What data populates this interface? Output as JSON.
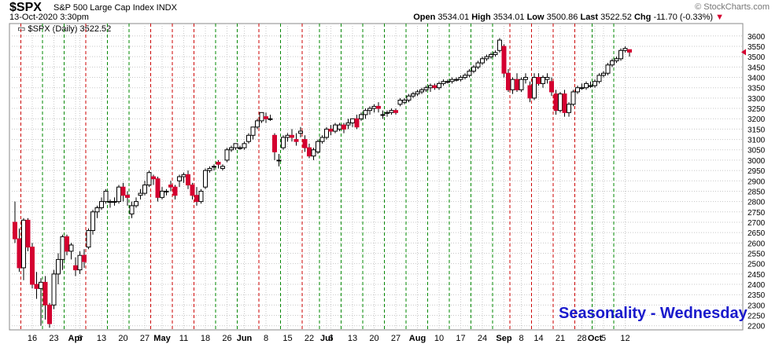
{
  "header": {
    "symbol": "$SPX",
    "description": "S&P 500 Large Cap Index  INDX",
    "datetime": "13-Oct-2020 3:30pm",
    "open_label": "Open",
    "open": "3534.01",
    "high_label": "High",
    "high": "3534.01",
    "low_label": "Low",
    "low": "3500.86",
    "last_label": "Last",
    "last": "3522.52",
    "chg_label": "Chg",
    "chg": "-11.70 (-0.33%)",
    "brand": "© StockCharts.com"
  },
  "legend": {
    "text": "$SPX (Daily) 3522.52"
  },
  "overlay_text": "Seasonality - Wednesday",
  "colors": {
    "up": "#ffffff",
    "down": "#d40030",
    "grid": "#c8c8c8",
    "red_line": "#cc0000",
    "green_line": "#008800"
  },
  "chart_data": {
    "type": "candlestick",
    "title": "$SPX (Daily) 3522.52",
    "ylim": [
      2200,
      3650
    ],
    "y_ticks": [
      2200,
      2250,
      2300,
      2350,
      2400,
      2450,
      2500,
      2550,
      2600,
      2650,
      2700,
      2750,
      2800,
      2850,
      2900,
      2950,
      3000,
      3050,
      3100,
      3150,
      3200,
      3250,
      3300,
      3350,
      3400,
      3450,
      3500,
      3550,
      3600
    ],
    "x_labels": [
      {
        "text": "16",
        "bold": false,
        "i": 4
      },
      {
        "text": "23",
        "bold": false,
        "i": 9
      },
      {
        "text": "Apr",
        "bold": true,
        "i": 14
      },
      {
        "text": "6",
        "bold": false,
        "i": 15
      },
      {
        "text": "13",
        "bold": false,
        "i": 20
      },
      {
        "text": "20",
        "bold": false,
        "i": 25
      },
      {
        "text": "27",
        "bold": false,
        "i": 30
      },
      {
        "text": "May",
        "bold": true,
        "i": 34
      },
      {
        "text": "11",
        "bold": false,
        "i": 39
      },
      {
        "text": "18",
        "bold": false,
        "i": 44
      },
      {
        "text": "26",
        "bold": false,
        "i": 49
      },
      {
        "text": "Jun",
        "bold": true,
        "i": 53
      },
      {
        "text": "8",
        "bold": false,
        "i": 58
      },
      {
        "text": "15",
        "bold": false,
        "i": 63
      },
      {
        "text": "22",
        "bold": false,
        "i": 68
      },
      {
        "text": "Jul",
        "bold": true,
        "i": 72
      },
      {
        "text": "6",
        "bold": false,
        "i": 73
      },
      {
        "text": "13",
        "bold": false,
        "i": 78
      },
      {
        "text": "20",
        "bold": false,
        "i": 83
      },
      {
        "text": "27",
        "bold": false,
        "i": 88
      },
      {
        "text": "Aug",
        "bold": true,
        "i": 93
      },
      {
        "text": "10",
        "bold": false,
        "i": 98
      },
      {
        "text": "17",
        "bold": false,
        "i": 103
      },
      {
        "text": "24",
        "bold": false,
        "i": 108
      },
      {
        "text": "Sep",
        "bold": true,
        "i": 113
      },
      {
        "text": "8",
        "bold": false,
        "i": 117
      },
      {
        "text": "14",
        "bold": false,
        "i": 121
      },
      {
        "text": "21",
        "bold": false,
        "i": 126
      },
      {
        "text": "28",
        "bold": false,
        "i": 131
      },
      {
        "text": "Oct",
        "bold": true,
        "i": 134
      },
      {
        "text": "5",
        "bold": false,
        "i": 136
      },
      {
        "text": "12",
        "bold": false,
        "i": 141
      }
    ],
    "wednesday_lines": [
      {
        "i": 1,
        "color": "red"
      },
      {
        "i": 6,
        "color": "green"
      },
      {
        "i": 11,
        "color": "green"
      },
      {
        "i": 16,
        "color": "red"
      },
      {
        "i": 21,
        "color": "green"
      },
      {
        "i": 26,
        "color": "green"
      },
      {
        "i": 31,
        "color": "red"
      },
      {
        "i": 36,
        "color": "red"
      },
      {
        "i": 41,
        "color": "red"
      },
      {
        "i": 46,
        "color": "green"
      },
      {
        "i": 51,
        "color": "green"
      },
      {
        "i": 56,
        "color": "red"
      },
      {
        "i": 61,
        "color": "green"
      },
      {
        "i": 66,
        "color": "red"
      },
      {
        "i": 70,
        "color": "green"
      },
      {
        "i": 75,
        "color": "green"
      },
      {
        "i": 80,
        "color": "green"
      },
      {
        "i": 85,
        "color": "green"
      },
      {
        "i": 90,
        "color": "green"
      },
      {
        "i": 95,
        "color": "green"
      },
      {
        "i": 100,
        "color": "green"
      },
      {
        "i": 105,
        "color": "green"
      },
      {
        "i": 110,
        "color": "green"
      },
      {
        "i": 114,
        "color": "red"
      },
      {
        "i": 119,
        "color": "red"
      },
      {
        "i": 124,
        "color": "red"
      },
      {
        "i": 129,
        "color": "red"
      },
      {
        "i": 133,
        "color": "green"
      },
      {
        "i": 138,
        "color": "green"
      }
    ],
    "candles": [
      [
        2700,
        2800,
        2600,
        2620
      ],
      [
        2620,
        2670,
        2460,
        2480
      ],
      [
        2480,
        2720,
        2420,
        2710
      ],
      [
        2710,
        2720,
        2560,
        2580
      ],
      [
        2580,
        2600,
        2380,
        2400
      ],
      [
        2400,
        2460,
        2330,
        2380
      ],
      [
        2380,
        2430,
        2200,
        2410
      ],
      [
        2410,
        2440,
        2230,
        2300
      ],
      [
        2300,
        2310,
        2190,
        2210
      ],
      [
        2300,
        2470,
        2280,
        2450
      ],
      [
        2450,
        2550,
        2400,
        2520
      ],
      [
        2520,
        2640,
        2470,
        2630
      ],
      [
        2630,
        2640,
        2540,
        2560
      ],
      [
        2560,
        2600,
        2520,
        2590
      ],
      [
        2490,
        2530,
        2440,
        2470
      ],
      [
        2470,
        2560,
        2450,
        2540
      ],
      [
        2540,
        2570,
        2480,
        2510
      ],
      [
        2580,
        2670,
        2570,
        2660
      ],
      [
        2660,
        2760,
        2640,
        2750
      ],
      [
        2750,
        2780,
        2720,
        2770
      ],
      [
        2770,
        2820,
        2760,
        2800
      ],
      [
        2800,
        2860,
        2790,
        2850
      ],
      [
        2800,
        2810,
        2770,
        2800
      ],
      [
        2800,
        2820,
        2780,
        2800
      ],
      [
        2800,
        2880,
        2790,
        2870
      ],
      [
        2870,
        2890,
        2800,
        2830
      ],
      [
        2830,
        2850,
        2780,
        2820
      ],
      [
        2740,
        2800,
        2720,
        2780
      ],
      [
        2780,
        2820,
        2770,
        2800
      ],
      [
        2830,
        2860,
        2810,
        2840
      ],
      [
        2840,
        2900,
        2830,
        2880
      ],
      [
        2880,
        2950,
        2870,
        2940
      ],
      [
        2920,
        2930,
        2880,
        2910
      ],
      [
        2910,
        2920,
        2800,
        2820
      ],
      [
        2820,
        2870,
        2810,
        2850
      ],
      [
        2850,
        2860,
        2830,
        2850
      ],
      [
        2880,
        2900,
        2850,
        2870
      ],
      [
        2870,
        2880,
        2810,
        2830
      ],
      [
        2900,
        2930,
        2870,
        2920
      ],
      [
        2920,
        2940,
        2890,
        2930
      ],
      [
        2930,
        2950,
        2860,
        2880
      ],
      [
        2880,
        2890,
        2810,
        2830
      ],
      [
        2830,
        2870,
        2780,
        2800
      ],
      [
        2800,
        2860,
        2790,
        2850
      ],
      [
        2870,
        2960,
        2860,
        2950
      ],
      [
        2950,
        2970,
        2940,
        2960
      ],
      [
        2970,
        2980,
        2950,
        2970
      ],
      [
        2990,
        3000,
        2960,
        2980
      ],
      [
        2960,
        2980,
        2950,
        2970
      ],
      [
        3000,
        3060,
        2990,
        3050
      ],
      [
        3050,
        3070,
        3040,
        3060
      ],
      [
        3060,
        3080,
        3050,
        3080
      ],
      [
        3060,
        3070,
        3050,
        3060
      ],
      [
        3060,
        3090,
        3050,
        3080
      ],
      [
        3090,
        3130,
        3080,
        3120
      ],
      [
        3120,
        3160,
        3100,
        3160
      ],
      [
        3160,
        3200,
        3150,
        3190
      ],
      [
        3190,
        3230,
        3180,
        3230
      ],
      [
        3210,
        3230,
        3180,
        3200
      ],
      [
        3200,
        3220,
        3190,
        3200
      ],
      [
        3120,
        3130,
        3000,
        3040
      ],
      [
        3000,
        3030,
        2970,
        3000
      ],
      [
        3060,
        3120,
        3050,
        3110
      ],
      [
        3110,
        3130,
        3090,
        3120
      ],
      [
        3120,
        3150,
        3090,
        3110
      ],
      [
        3100,
        3130,
        3070,
        3090
      ],
      [
        3130,
        3160,
        3110,
        3140
      ],
      [
        3100,
        3120,
        3040,
        3060
      ],
      [
        3060,
        3080,
        3010,
        3020
      ],
      [
        3020,
        3060,
        3000,
        3050
      ],
      [
        3040,
        3100,
        3030,
        3090
      ],
      [
        3090,
        3120,
        3080,
        3110
      ],
      [
        3110,
        3160,
        3100,
        3150
      ],
      [
        3150,
        3170,
        3120,
        3140
      ],
      [
        3140,
        3180,
        3130,
        3170
      ],
      [
        3150,
        3180,
        3140,
        3170
      ],
      [
        3170,
        3180,
        3130,
        3150
      ],
      [
        3170,
        3200,
        3150,
        3180
      ],
      [
        3180,
        3200,
        3160,
        3200
      ],
      [
        3200,
        3220,
        3150,
        3160
      ],
      [
        3200,
        3230,
        3190,
        3220
      ],
      [
        3220,
        3250,
        3200,
        3240
      ],
      [
        3240,
        3260,
        3220,
        3250
      ],
      [
        3250,
        3270,
        3230,
        3260
      ],
      [
        3260,
        3280,
        3230,
        3250
      ],
      [
        3220,
        3240,
        3200,
        3220
      ],
      [
        3230,
        3240,
        3210,
        3230
      ],
      [
        3230,
        3250,
        3220,
        3240
      ],
      [
        3240,
        3250,
        3220,
        3230
      ],
      [
        3270,
        3300,
        3260,
        3290
      ],
      [
        3280,
        3300,
        3270,
        3290
      ],
      [
        3290,
        3320,
        3280,
        3310
      ],
      [
        3310,
        3330,
        3300,
        3320
      ],
      [
        3320,
        3340,
        3310,
        3330
      ],
      [
        3330,
        3350,
        3320,
        3340
      ],
      [
        3340,
        3360,
        3330,
        3350
      ],
      [
        3350,
        3370,
        3330,
        3360
      ],
      [
        3360,
        3370,
        3340,
        3350
      ],
      [
        3350,
        3380,
        3340,
        3370
      ],
      [
        3370,
        3390,
        3360,
        3380
      ],
      [
        3380,
        3390,
        3370,
        3380
      ],
      [
        3380,
        3400,
        3370,
        3390
      ],
      [
        3390,
        3400,
        3380,
        3390
      ],
      [
        3390,
        3410,
        3380,
        3400
      ],
      [
        3400,
        3420,
        3390,
        3410
      ],
      [
        3410,
        3440,
        3400,
        3430
      ],
      [
        3430,
        3460,
        3420,
        3450
      ],
      [
        3450,
        3480,
        3440,
        3470
      ],
      [
        3470,
        3500,
        3460,
        3490
      ],
      [
        3490,
        3510,
        3480,
        3500
      ],
      [
        3500,
        3520,
        3490,
        3510
      ],
      [
        3510,
        3530,
        3500,
        3520
      ],
      [
        3530,
        3590,
        3520,
        3580
      ],
      [
        3550,
        3560,
        3400,
        3420
      ],
      [
        3420,
        3440,
        3330,
        3340
      ],
      [
        3340,
        3400,
        3320,
        3390
      ],
      [
        3390,
        3420,
        3330,
        3340
      ],
      [
        3340,
        3400,
        3330,
        3390
      ],
      [
        3390,
        3420,
        3370,
        3400
      ],
      [
        3360,
        3380,
        3280,
        3300
      ],
      [
        3300,
        3420,
        3290,
        3400
      ],
      [
        3400,
        3420,
        3360,
        3370
      ],
      [
        3370,
        3410,
        3350,
        3400
      ],
      [
        3390,
        3420,
        3370,
        3400
      ],
      [
        3380,
        3400,
        3310,
        3330
      ],
      [
        3320,
        3340,
        3220,
        3240
      ],
      [
        3240,
        3330,
        3230,
        3320
      ],
      [
        3320,
        3340,
        3210,
        3230
      ],
      [
        3230,
        3280,
        3210,
        3270
      ],
      [
        3270,
        3340,
        3260,
        3330
      ],
      [
        3330,
        3360,
        3320,
        3350
      ],
      [
        3350,
        3370,
        3340,
        3350
      ],
      [
        3350,
        3380,
        3340,
        3370
      ],
      [
        3360,
        3380,
        3350,
        3360
      ],
      [
        3360,
        3390,
        3350,
        3380
      ],
      [
        3380,
        3420,
        3370,
        3410
      ],
      [
        3410,
        3430,
        3400,
        3420
      ],
      [
        3420,
        3470,
        3410,
        3460
      ],
      [
        3460,
        3490,
        3450,
        3480
      ],
      [
        3480,
        3500,
        3470,
        3490
      ],
      [
        3490,
        3540,
        3480,
        3530
      ],
      [
        3530,
        3550,
        3520,
        3540
      ],
      [
        3534,
        3534,
        3500,
        3522
      ]
    ]
  }
}
